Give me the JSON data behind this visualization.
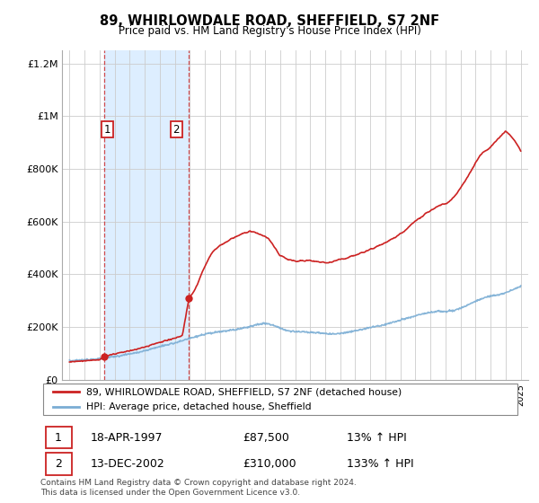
{
  "title": "89, WHIRLOWDALE ROAD, SHEFFIELD, S7 2NF",
  "subtitle": "Price paid vs. HM Land Registry's House Price Index (HPI)",
  "legend_line1": "89, WHIRLOWDALE ROAD, SHEFFIELD, S7 2NF (detached house)",
  "legend_line2": "HPI: Average price, detached house, Sheffield",
  "sale1_date": "18-APR-1997",
  "sale1_price": "£87,500",
  "sale1_hpi": "13% ↑ HPI",
  "sale1_year": 1997.29,
  "sale1_value": 87500,
  "sale2_date": "13-DEC-2002",
  "sale2_price": "£310,000",
  "sale2_hpi": "133% ↑ HPI",
  "sale2_year": 2002.95,
  "sale2_value": 310000,
  "hpi_color": "#7aadd4",
  "price_color": "#cc2222",
  "shade_color": "#ddeeff",
  "footer": "Contains HM Land Registry data © Crown copyright and database right 2024.\nThis data is licensed under the Open Government Licence v3.0.",
  "ylim": [
    0,
    1250000
  ],
  "xlim_start": 1994.5,
  "xlim_end": 2025.5,
  "hpi_anchors_x": [
    1995.0,
    1995.5,
    1996.0,
    1996.5,
    1997.0,
    1997.5,
    1998.0,
    1998.5,
    1999.0,
    1999.5,
    2000.0,
    2000.5,
    2001.0,
    2001.5,
    2002.0,
    2002.5,
    2003.0,
    2003.5,
    2004.0,
    2004.5,
    2005.0,
    2005.5,
    2006.0,
    2006.5,
    2007.0,
    2007.5,
    2008.0,
    2008.5,
    2009.0,
    2009.5,
    2010.0,
    2010.5,
    2011.0,
    2011.5,
    2012.0,
    2012.5,
    2013.0,
    2013.5,
    2014.0,
    2014.5,
    2015.0,
    2015.5,
    2016.0,
    2016.5,
    2017.0,
    2017.5,
    2018.0,
    2018.5,
    2019.0,
    2019.5,
    2020.0,
    2020.5,
    2021.0,
    2021.5,
    2022.0,
    2022.5,
    2023.0,
    2023.5,
    2024.0,
    2024.5,
    2025.0
  ],
  "hpi_anchors_y": [
    72000,
    74000,
    76000,
    78000,
    80000,
    84000,
    88000,
    93000,
    98000,
    103000,
    110000,
    118000,
    126000,
    133000,
    140000,
    148000,
    157000,
    165000,
    172000,
    178000,
    182000,
    186000,
    190000,
    196000,
    202000,
    210000,
    215000,
    208000,
    196000,
    187000,
    182000,
    182000,
    180000,
    178000,
    175000,
    174000,
    176000,
    180000,
    186000,
    192000,
    198000,
    204000,
    210000,
    218000,
    226000,
    234000,
    242000,
    250000,
    256000,
    260000,
    258000,
    262000,
    272000,
    284000,
    298000,
    310000,
    318000,
    322000,
    330000,
    342000,
    355000
  ],
  "price_anchors_pre_x": [
    1995.0,
    1995.5,
    1996.0,
    1996.5,
    1997.0,
    1997.29
  ],
  "price_anchors_pre_y": [
    68000,
    70000,
    72000,
    74000,
    76000,
    87500
  ],
  "price_anchors_mid_x": [
    1997.29,
    1997.5,
    1998.0,
    1998.5,
    1999.0,
    1999.5,
    2000.0,
    2000.5,
    2001.0,
    2001.5,
    2002.0,
    2002.5,
    2002.95
  ],
  "price_anchors_mid_y": [
    87500,
    92000,
    98000,
    104000,
    110000,
    116000,
    124000,
    133000,
    142000,
    150000,
    158000,
    167000,
    310000
  ],
  "price_anchors_post_x": [
    2002.95,
    2003.0,
    2003.25,
    2003.5,
    2003.75,
    2004.0,
    2004.25,
    2004.5,
    2004.75,
    2005.0,
    2005.5,
    2006.0,
    2006.5,
    2007.0,
    2007.25,
    2007.5,
    2007.75,
    2008.0,
    2008.25,
    2008.5,
    2008.75,
    2009.0,
    2009.5,
    2010.0,
    2010.5,
    2011.0,
    2011.5,
    2012.0,
    2012.5,
    2013.0,
    2013.5,
    2014.0,
    2014.5,
    2015.0,
    2015.5,
    2016.0,
    2016.5,
    2017.0,
    2017.25,
    2017.5,
    2017.75,
    2018.0,
    2018.25,
    2018.5,
    2018.75,
    2019.0,
    2019.25,
    2019.5,
    2019.75,
    2020.0,
    2020.25,
    2020.5,
    2020.75,
    2021.0,
    2021.25,
    2021.5,
    2021.75,
    2022.0,
    2022.25,
    2022.5,
    2022.75,
    2023.0,
    2023.25,
    2023.5,
    2023.75,
    2024.0,
    2024.25,
    2024.5,
    2024.75,
    2025.0
  ],
  "price_anchors_post_y": [
    310000,
    315000,
    335000,
    365000,
    400000,
    430000,
    460000,
    485000,
    500000,
    510000,
    525000,
    540000,
    555000,
    560000,
    558000,
    552000,
    545000,
    538000,
    530000,
    510000,
    490000,
    468000,
    450000,
    448000,
    450000,
    455000,
    452000,
    448000,
    450000,
    455000,
    462000,
    472000,
    485000,
    498000,
    512000,
    525000,
    540000,
    558000,
    568000,
    580000,
    592000,
    604000,
    616000,
    628000,
    642000,
    655000,
    665000,
    672000,
    678000,
    682000,
    690000,
    705000,
    722000,
    742000,
    762000,
    785000,
    810000,
    838000,
    862000,
    878000,
    888000,
    895000,
    910000,
    925000,
    938000,
    950000,
    940000,
    920000,
    900000,
    870000
  ]
}
